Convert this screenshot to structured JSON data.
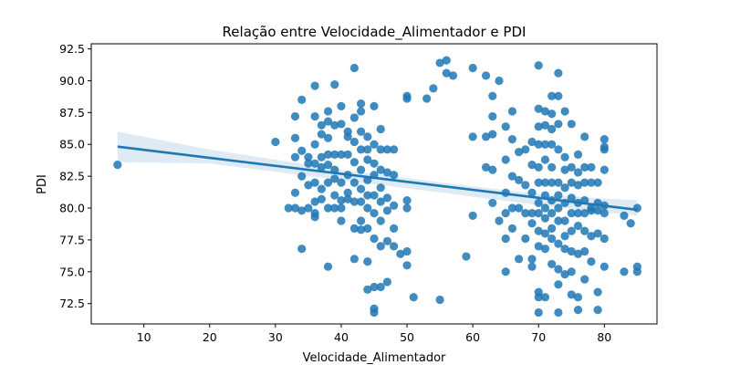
{
  "chart_data": {
    "type": "scatter",
    "title": "Relação entre Velocidade_Alimentador e PDI",
    "xlabel": "Velocidade_Alimentador",
    "ylabel": "PDI",
    "xlim": [
      2,
      88
    ],
    "ylim": [
      70.9,
      92.9
    ],
    "xticks": [
      10,
      20,
      30,
      40,
      50,
      60,
      70,
      80
    ],
    "yticks": [
      72.5,
      75.0,
      77.5,
      80.0,
      82.5,
      85.0,
      87.5,
      90.0,
      92.5
    ],
    "xtick_labels": [
      "10",
      "20",
      "30",
      "40",
      "50",
      "60",
      "70",
      "80"
    ],
    "ytick_labels": [
      "72.5",
      "75.0",
      "77.5",
      "80.0",
      "82.5",
      "85.0",
      "87.5",
      "90.0",
      "92.5"
    ],
    "grid": false,
    "point_color": "#1f77b4",
    "regression": {
      "x_range": [
        6,
        85
      ],
      "slope": -0.0628,
      "intercept": 85.2,
      "ci_upper": [
        [
          6,
          86.0
        ],
        [
          20,
          84.6
        ],
        [
          40,
          83.0
        ],
        [
          60,
          81.7
        ],
        [
          72,
          81.0
        ],
        [
          85,
          80.6
        ]
      ],
      "ci_lower": [
        [
          6,
          83.6
        ],
        [
          20,
          83.5
        ],
        [
          40,
          82.2
        ],
        [
          60,
          80.9
        ],
        [
          72,
          80.1
        ],
        [
          85,
          79.4
        ]
      ]
    },
    "points": [
      [
        6,
        83.4
      ],
      [
        30,
        85.2
      ],
      [
        32,
        80.0
      ],
      [
        33,
        87.2
      ],
      [
        33,
        85.5
      ],
      [
        33,
        84.0
      ],
      [
        33,
        81.2
      ],
      [
        33,
        80.0
      ],
      [
        34,
        88.5
      ],
      [
        34,
        84.5
      ],
      [
        34,
        82.5
      ],
      [
        34,
        79.8
      ],
      [
        34,
        76.8
      ],
      [
        35,
        84.0
      ],
      [
        35,
        83.5
      ],
      [
        35,
        81.8
      ],
      [
        35,
        80.0
      ],
      [
        36,
        89.6
      ],
      [
        36,
        87.2
      ],
      [
        36,
        85.0
      ],
      [
        36,
        83.5
      ],
      [
        36,
        82.0
      ],
      [
        36,
        80.5
      ],
      [
        36,
        79.6
      ],
      [
        36,
        79.3
      ],
      [
        37,
        86.5
      ],
      [
        37,
        85.8
      ],
      [
        37,
        84.0
      ],
      [
        37,
        83.2
      ],
      [
        37,
        81.5
      ],
      [
        37,
        80.7
      ],
      [
        38,
        87.6
      ],
      [
        38,
        86.8
      ],
      [
        38,
        85.5
      ],
      [
        38,
        84.2
      ],
      [
        38,
        83.4
      ],
      [
        38,
        82.0
      ],
      [
        38,
        80.0
      ],
      [
        38,
        75.4
      ],
      [
        39,
        89.7
      ],
      [
        39,
        86.5
      ],
      [
        39,
        84.2
      ],
      [
        39,
        83.0
      ],
      [
        39,
        82.3
      ],
      [
        39,
        81.0
      ],
      [
        39,
        80.0
      ],
      [
        40,
        88.0
      ],
      [
        40,
        86.6
      ],
      [
        40,
        84.2
      ],
      [
        40,
        82.0
      ],
      [
        40,
        80.6
      ],
      [
        40,
        80.0
      ],
      [
        40,
        79.0
      ],
      [
        41,
        86.0
      ],
      [
        41,
        85.6
      ],
      [
        41,
        84.2
      ],
      [
        41,
        82.6
      ],
      [
        41,
        81.2
      ],
      [
        41,
        80.7
      ],
      [
        42,
        91.0
      ],
      [
        42,
        87.1
      ],
      [
        42,
        85.2
      ],
      [
        42,
        83.6
      ],
      [
        42,
        82.0
      ],
      [
        42,
        80.5
      ],
      [
        42,
        78.4
      ],
      [
        42,
        76.0
      ],
      [
        43,
        88.2
      ],
      [
        43,
        87.6
      ],
      [
        43,
        86.0
      ],
      [
        43,
        84.6
      ],
      [
        43,
        83.0
      ],
      [
        43,
        81.5
      ],
      [
        43,
        80.5
      ],
      [
        43,
        79.0
      ],
      [
        43,
        78.3
      ],
      [
        44,
        85.6
      ],
      [
        44,
        84.6
      ],
      [
        44,
        83.8
      ],
      [
        44,
        82.2
      ],
      [
        44,
        81.0
      ],
      [
        44,
        80.0
      ],
      [
        44,
        78.4
      ],
      [
        44,
        75.8
      ],
      [
        44,
        73.6
      ],
      [
        45,
        88.0
      ],
      [
        45,
        85.0
      ],
      [
        45,
        83.5
      ],
      [
        45,
        82.6
      ],
      [
        45,
        81.0
      ],
      [
        45,
        79.6
      ],
      [
        45,
        77.6
      ],
      [
        45,
        73.8
      ],
      [
        45,
        72.1
      ],
      [
        45,
        71.8
      ],
      [
        46,
        86.2
      ],
      [
        46,
        84.6
      ],
      [
        46,
        83.0
      ],
      [
        46,
        81.6
      ],
      [
        46,
        80.5
      ],
      [
        46,
        79.0
      ],
      [
        46,
        77.0
      ],
      [
        46,
        73.8
      ],
      [
        47,
        84.6
      ],
      [
        47,
        82.8
      ],
      [
        47,
        80.8
      ],
      [
        47,
        79.8
      ],
      [
        47,
        77.4
      ],
      [
        47,
        74.2
      ],
      [
        48,
        84.6
      ],
      [
        48,
        82.6
      ],
      [
        48,
        80.2
      ],
      [
        48,
        78.4
      ],
      [
        48,
        77.0
      ],
      [
        49,
        76.4
      ],
      [
        50,
        88.8
      ],
      [
        50,
        88.6
      ],
      [
        50,
        80.6
      ],
      [
        50,
        80.0
      ],
      [
        50,
        76.6
      ],
      [
        50,
        75.5
      ],
      [
        51,
        73.0
      ],
      [
        53,
        88.6
      ],
      [
        54,
        89.4
      ],
      [
        55,
        91.4
      ],
      [
        55,
        72.8
      ],
      [
        56,
        91.6
      ],
      [
        56,
        90.6
      ],
      [
        57,
        90.4
      ],
      [
        59,
        76.2
      ],
      [
        60,
        91.0
      ],
      [
        60,
        85.6
      ],
      [
        60,
        79.4
      ],
      [
        62,
        90.4
      ],
      [
        62,
        85.6
      ],
      [
        62,
        83.2
      ],
      [
        63,
        88.8
      ],
      [
        63,
        87.2
      ],
      [
        63,
        85.8
      ],
      [
        63,
        83.0
      ],
      [
        63,
        80.4
      ],
      [
        64,
        90.0
      ],
      [
        64,
        79.0
      ],
      [
        65,
        86.4
      ],
      [
        65,
        83.8
      ],
      [
        65,
        81.2
      ],
      [
        65,
        79.6
      ],
      [
        65,
        77.6
      ],
      [
        65,
        75.0
      ],
      [
        66,
        87.6
      ],
      [
        66,
        85.4
      ],
      [
        66,
        82.5
      ],
      [
        66,
        80.0
      ],
      [
        66,
        78.4
      ],
      [
        67,
        84.4
      ],
      [
        67,
        82.2
      ],
      [
        67,
        80.0
      ],
      [
        67,
        76.0
      ],
      [
        68,
        84.6
      ],
      [
        68,
        81.8
      ],
      [
        68,
        79.6
      ],
      [
        68,
        77.6
      ],
      [
        69,
        85.2
      ],
      [
        69,
        83.4
      ],
      [
        69,
        81.2
      ],
      [
        69,
        79.6
      ],
      [
        69,
        78.8
      ],
      [
        69,
        76.0
      ],
      [
        69,
        75.4
      ],
      [
        70,
        91.2
      ],
      [
        70,
        87.8
      ],
      [
        70,
        86.4
      ],
      [
        70,
        85.0
      ],
      [
        70,
        83.2
      ],
      [
        70,
        82.0
      ],
      [
        70,
        80.4
      ],
      [
        70,
        79.6
      ],
      [
        70,
        78.2
      ],
      [
        70,
        77.0
      ],
      [
        70,
        73.4
      ],
      [
        70,
        73.0
      ],
      [
        70,
        71.8
      ],
      [
        71,
        87.6
      ],
      [
        71,
        86.5
      ],
      [
        71,
        85.0
      ],
      [
        71,
        83.8
      ],
      [
        71,
        82.0
      ],
      [
        71,
        81.0
      ],
      [
        71,
        80.0
      ],
      [
        71,
        79.2
      ],
      [
        71,
        78.0
      ],
      [
        71,
        76.8
      ],
      [
        71,
        73.0
      ],
      [
        72,
        88.8
      ],
      [
        72,
        87.4
      ],
      [
        72,
        86.2
      ],
      [
        72,
        85.0
      ],
      [
        72,
        83.2
      ],
      [
        72,
        82.0
      ],
      [
        72,
        80.6
      ],
      [
        72,
        79.6
      ],
      [
        72,
        78.4
      ],
      [
        72,
        77.6
      ],
      [
        72,
        75.6
      ],
      [
        73,
        90.6
      ],
      [
        73,
        88.8
      ],
      [
        73,
        86.6
      ],
      [
        73,
        84.6
      ],
      [
        73,
        82.0
      ],
      [
        73,
        81.0
      ],
      [
        73,
        80.0
      ],
      [
        73,
        79.0
      ],
      [
        73,
        77.2
      ],
      [
        73,
        75.2
      ],
      [
        73,
        74.0
      ],
      [
        73,
        71.8
      ],
      [
        74,
        87.6
      ],
      [
        74,
        84.0
      ],
      [
        74,
        83.0
      ],
      [
        74,
        81.6
      ],
      [
        74,
        80.4
      ],
      [
        74,
        79.0
      ],
      [
        74,
        77.8
      ],
      [
        74,
        76.8
      ],
      [
        74,
        74.8
      ],
      [
        75,
        86.6
      ],
      [
        75,
        83.2
      ],
      [
        75,
        82.0
      ],
      [
        75,
        80.8
      ],
      [
        75,
        79.6
      ],
      [
        75,
        78.2
      ],
      [
        75,
        76.6
      ],
      [
        75,
        75.0
      ],
      [
        75,
        73.2
      ],
      [
        76,
        84.2
      ],
      [
        76,
        82.8
      ],
      [
        76,
        81.8
      ],
      [
        76,
        80.4
      ],
      [
        76,
        79.6
      ],
      [
        76,
        78.6
      ],
      [
        76,
        76.4
      ],
      [
        76,
        73.0
      ],
      [
        76,
        72.0
      ],
      [
        77,
        85.6
      ],
      [
        77,
        83.2
      ],
      [
        77,
        82.0
      ],
      [
        77,
        80.6
      ],
      [
        77,
        79.6
      ],
      [
        77,
        78.2
      ],
      [
        77,
        76.6
      ],
      [
        77,
        74.4
      ],
      [
        78,
        83.2
      ],
      [
        78,
        82.0
      ],
      [
        78,
        80.0
      ],
      [
        78,
        79.8
      ],
      [
        78,
        77.8
      ],
      [
        78,
        75.8
      ],
      [
        79,
        82.0
      ],
      [
        79,
        80.4
      ],
      [
        79,
        79.8
      ],
      [
        79,
        78.0
      ],
      [
        79,
        73.4
      ],
      [
        79,
        72.0
      ],
      [
        80,
        85.4
      ],
      [
        80,
        84.8
      ],
      [
        80,
        84.6
      ],
      [
        80,
        83.0
      ],
      [
        80,
        80.2
      ],
      [
        80,
        79.6
      ],
      [
        80,
        77.6
      ],
      [
        80,
        75.4
      ],
      [
        83,
        79.4
      ],
      [
        83,
        75.0
      ],
      [
        84,
        78.8
      ],
      [
        85,
        80.0
      ],
      [
        85,
        75.4
      ],
      [
        85,
        75.0
      ]
    ]
  }
}
